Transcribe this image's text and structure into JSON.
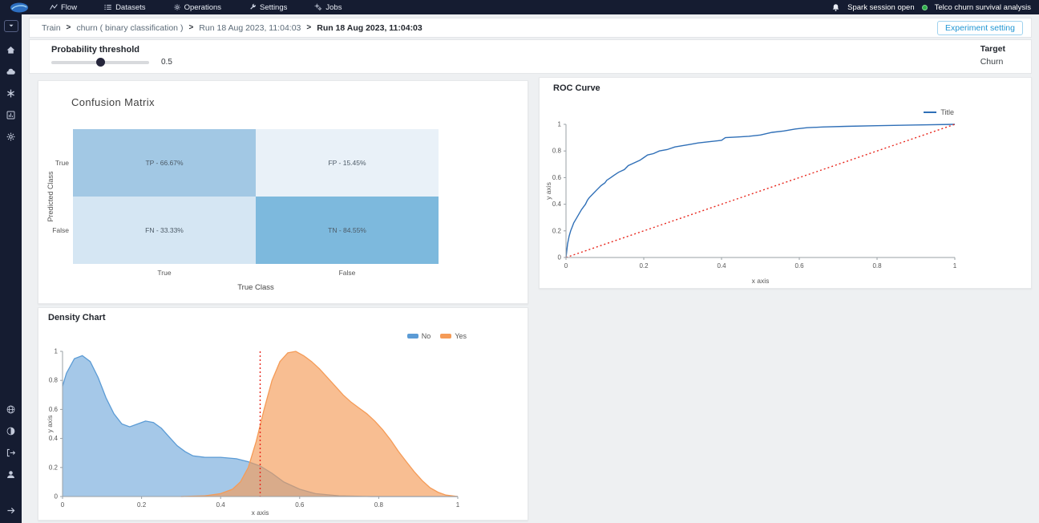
{
  "top_nav": {
    "items": [
      {
        "icon": "flow-icon",
        "label": "Flow"
      },
      {
        "icon": "datasets-icon",
        "label": "Datasets"
      },
      {
        "icon": "operations-icon",
        "label": "Operations"
      },
      {
        "icon": "settings-icon",
        "label": "Settings"
      },
      {
        "icon": "jobs-icon",
        "label": "Jobs"
      }
    ],
    "session_status": "Spark session open",
    "project_name": "Telco churn survival analysis"
  },
  "sidebar": {
    "top_icons": [
      "caret-down-icon",
      "home-icon",
      "cloud-icon",
      "apps-icon",
      "reports-icon",
      "gear-icon"
    ],
    "bottom_icons": [
      "globe-icon",
      "contrast-icon",
      "logout-icon",
      "user-icon",
      "arrow-right-icon"
    ]
  },
  "breadcrumb": {
    "separator": ">",
    "items": [
      {
        "label": "Train",
        "current": false
      },
      {
        "label": "churn ( binary classification )",
        "current": false
      },
      {
        "label": "Run 18 Aug 2023, 11:04:03",
        "current": false
      },
      {
        "label": "Run 18 Aug 2023, 11:04:03",
        "current": true
      }
    ]
  },
  "experiment_setting_button": "Experiment setting",
  "threshold": {
    "label": "Probability threshold",
    "value": "0.5"
  },
  "target": {
    "label": "Target",
    "value": "Churn"
  },
  "colors": {
    "topbar_bg": "#151c31",
    "accent_blue": "#2196d3",
    "status_green": "#2fae49",
    "roc_line": "#2f6fb7",
    "reference_red": "#e8281e",
    "density_no": "#5b9bd5",
    "density_yes": "#f59b57"
  },
  "chart_data": [
    {
      "id": "confusion_matrix",
      "type": "heatmap",
      "title": "Confusion Matrix",
      "xlabel": "True Class",
      "ylabel": "Predicted Class",
      "x_categories": [
        "True",
        "False"
      ],
      "y_categories": [
        "True",
        "False"
      ],
      "cells": [
        {
          "y": "True",
          "x": "True",
          "label": "TP - 66.67%",
          "value": 66.67,
          "color": "#a2c8e4"
        },
        {
          "y": "True",
          "x": "False",
          "label": "FP - 15.45%",
          "value": 15.45,
          "color": "#e9f1f8"
        },
        {
          "y": "False",
          "x": "True",
          "label": "FN - 33.33%",
          "value": 33.33,
          "color": "#d5e6f3"
        },
        {
          "y": "False",
          "x": "False",
          "label": "TN - 84.55%",
          "value": 84.55,
          "color": "#7db9dd"
        }
      ]
    },
    {
      "id": "roc_curve",
      "type": "line",
      "title": "ROC Curve",
      "xlabel": "x axis",
      "ylabel": "y axis",
      "xlim": [
        0,
        1
      ],
      "ylim": [
        0,
        1
      ],
      "x_ticks": [
        0,
        0.2,
        0.4,
        0.6,
        0.8,
        1
      ],
      "y_ticks": [
        0,
        0.2,
        0.4,
        0.6,
        0.8,
        1
      ],
      "legend": [
        {
          "label": "Title",
          "color": "#2f6fb7"
        }
      ],
      "series": [
        {
          "name": "Title",
          "type": "line",
          "color": "#2f6fb7",
          "width": 1.4,
          "points": [
            [
              0,
              0
            ],
            [
              0.004,
              0.1
            ],
            [
              0.008,
              0.16
            ],
            [
              0.012,
              0.2
            ],
            [
              0.016,
              0.23
            ],
            [
              0.02,
              0.26
            ],
            [
              0.028,
              0.3
            ],
            [
              0.034,
              0.33
            ],
            [
              0.04,
              0.36
            ],
            [
              0.05,
              0.4
            ],
            [
              0.055,
              0.43
            ],
            [
              0.06,
              0.45
            ],
            [
              0.07,
              0.48
            ],
            [
              0.08,
              0.51
            ],
            [
              0.09,
              0.54
            ],
            [
              0.1,
              0.56
            ],
            [
              0.105,
              0.58
            ],
            [
              0.115,
              0.6
            ],
            [
              0.125,
              0.62
            ],
            [
              0.135,
              0.64
            ],
            [
              0.15,
              0.66
            ],
            [
              0.16,
              0.69
            ],
            [
              0.175,
              0.71
            ],
            [
              0.19,
              0.73
            ],
            [
              0.2,
              0.75
            ],
            [
              0.21,
              0.77
            ],
            [
              0.225,
              0.78
            ],
            [
              0.24,
              0.8
            ],
            [
              0.26,
              0.81
            ],
            [
              0.28,
              0.83
            ],
            [
              0.3,
              0.84
            ],
            [
              0.32,
              0.85
            ],
            [
              0.34,
              0.86
            ],
            [
              0.37,
              0.87
            ],
            [
              0.4,
              0.88
            ],
            [
              0.41,
              0.9
            ],
            [
              0.44,
              0.905
            ],
            [
              0.47,
              0.91
            ],
            [
              0.5,
              0.92
            ],
            [
              0.53,
              0.94
            ],
            [
              0.56,
              0.95
            ],
            [
              0.59,
              0.965
            ],
            [
              0.62,
              0.975
            ],
            [
              0.66,
              0.98
            ],
            [
              0.72,
              0.985
            ],
            [
              0.8,
              0.99
            ],
            [
              0.9,
              0.995
            ],
            [
              1,
              1
            ]
          ]
        },
        {
          "name": "reference-diagonal",
          "type": "line",
          "color": "#e8281e",
          "width": 1.4,
          "dash": "2,3",
          "points": [
            [
              0,
              0
            ],
            [
              1,
              1
            ]
          ]
        }
      ]
    },
    {
      "id": "density_chart",
      "type": "area",
      "title": "Density Chart",
      "xlabel": "x axis",
      "ylabel": "y axis",
      "xlim": [
        0,
        1
      ],
      "ylim": [
        0,
        1
      ],
      "x_ticks": [
        0,
        0.2,
        0.4,
        0.6,
        0.8,
        1
      ],
      "y_ticks": [
        0,
        0.2,
        0.4,
        0.6,
        0.8,
        1
      ],
      "legend": [
        {
          "label": "No",
          "color": "#5b9bd5"
        },
        {
          "label": "Yes",
          "color": "#f59b57"
        }
      ],
      "threshold_line": {
        "x": 0.5,
        "color": "#e8281e"
      },
      "series": [
        {
          "name": "No",
          "type": "area",
          "color": "#5b9bd5",
          "fill_opacity": 0.55,
          "points": [
            [
              0,
              0.76
            ],
            [
              0.01,
              0.85
            ],
            [
              0.03,
              0.95
            ],
            [
              0.05,
              0.97
            ],
            [
              0.07,
              0.93
            ],
            [
              0.09,
              0.82
            ],
            [
              0.11,
              0.68
            ],
            [
              0.13,
              0.57
            ],
            [
              0.15,
              0.5
            ],
            [
              0.17,
              0.48
            ],
            [
              0.19,
              0.5
            ],
            [
              0.21,
              0.52
            ],
            [
              0.23,
              0.51
            ],
            [
              0.25,
              0.47
            ],
            [
              0.27,
              0.41
            ],
            [
              0.29,
              0.35
            ],
            [
              0.31,
              0.31
            ],
            [
              0.33,
              0.28
            ],
            [
              0.36,
              0.27
            ],
            [
              0.4,
              0.27
            ],
            [
              0.44,
              0.26
            ],
            [
              0.47,
              0.24
            ],
            [
              0.5,
              0.21
            ],
            [
              0.53,
              0.16
            ],
            [
              0.56,
              0.1
            ],
            [
              0.6,
              0.05
            ],
            [
              0.64,
              0.02
            ],
            [
              0.7,
              0.005
            ],
            [
              0.78,
              0
            ],
            [
              1,
              0
            ]
          ]
        },
        {
          "name": "Yes",
          "type": "area",
          "color": "#f59b57",
          "fill_opacity": 0.65,
          "points": [
            [
              0.3,
              0
            ],
            [
              0.36,
              0.005
            ],
            [
              0.4,
              0.02
            ],
            [
              0.43,
              0.05
            ],
            [
              0.45,
              0.1
            ],
            [
              0.47,
              0.2
            ],
            [
              0.49,
              0.38
            ],
            [
              0.51,
              0.6
            ],
            [
              0.53,
              0.8
            ],
            [
              0.55,
              0.93
            ],
            [
              0.57,
              0.99
            ],
            [
              0.59,
              1
            ],
            [
              0.61,
              0.97
            ],
            [
              0.63,
              0.93
            ],
            [
              0.65,
              0.88
            ],
            [
              0.67,
              0.82
            ],
            [
              0.69,
              0.76
            ],
            [
              0.71,
              0.7
            ],
            [
              0.73,
              0.65
            ],
            [
              0.75,
              0.61
            ],
            [
              0.77,
              0.57
            ],
            [
              0.79,
              0.52
            ],
            [
              0.81,
              0.46
            ],
            [
              0.83,
              0.39
            ],
            [
              0.85,
              0.31
            ],
            [
              0.87,
              0.24
            ],
            [
              0.89,
              0.17
            ],
            [
              0.91,
              0.11
            ],
            [
              0.93,
              0.06
            ],
            [
              0.95,
              0.03
            ],
            [
              0.97,
              0.01
            ],
            [
              1,
              0
            ]
          ]
        }
      ]
    }
  ]
}
